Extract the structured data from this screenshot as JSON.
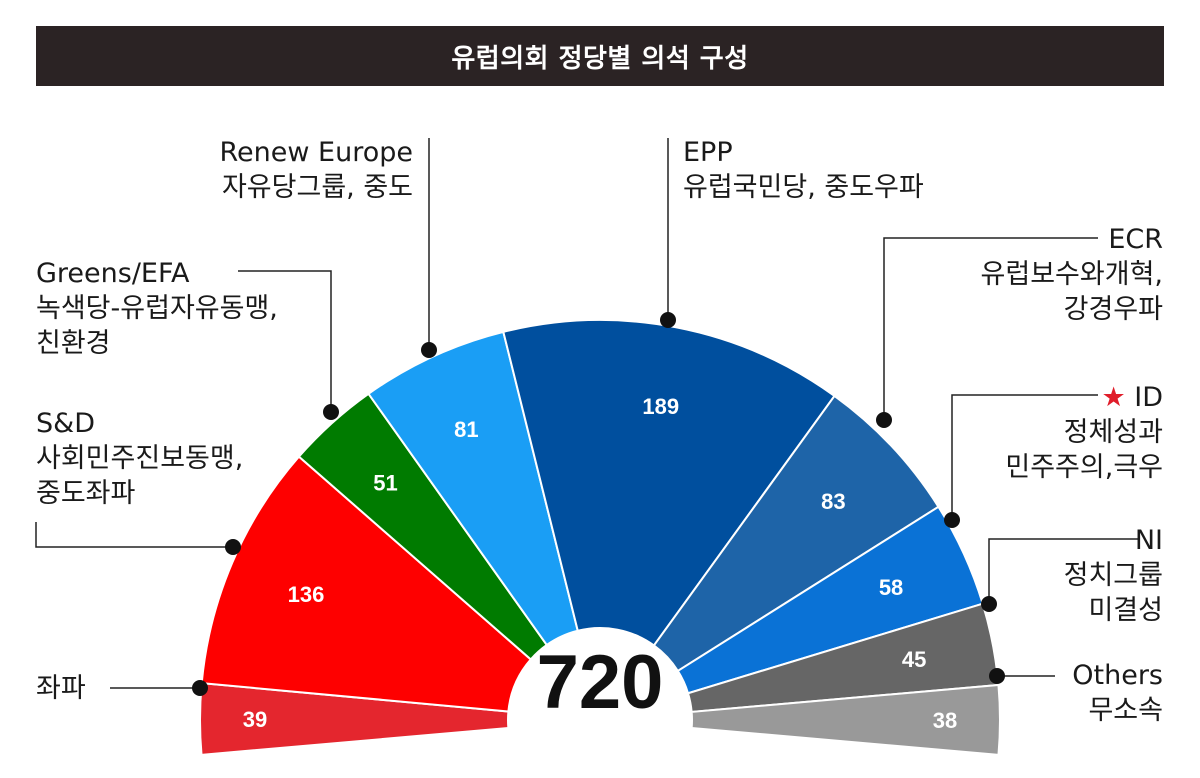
{
  "chart_data": {
    "type": "pie",
    "title": "유럽의회 정당별 의석 구성",
    "total": "720",
    "colors": {
      "title_bg": "#2b2324",
      "star": "#e01d2a"
    },
    "series": [
      {
        "name": "좌파",
        "value": 39,
        "color": "#e4262e",
        "label_lines": [
          "좌파"
        ]
      },
      {
        "name": "S&D",
        "value": 136,
        "color": "#fe0000",
        "label_lines": [
          "S&D",
          "사회민주진보동맹,",
          "중도좌파"
        ]
      },
      {
        "name": "Greens/EFA",
        "value": 51,
        "color": "#007b00",
        "label_lines": [
          "Greens/EFA",
          "녹색당-유럽자유동맹,",
          "친환경"
        ]
      },
      {
        "name": "Renew Europe",
        "value": 81,
        "color": "#1a9ef5",
        "label_lines": [
          "Renew Europe",
          "자유당그룹, 중도"
        ]
      },
      {
        "name": "EPP",
        "value": 189,
        "color": "#004f9e",
        "label_lines": [
          "EPP",
          "유럽국민당, 중도우파"
        ]
      },
      {
        "name": "ECR",
        "value": 83,
        "color": "#1e64a8",
        "label_lines": [
          "ECR",
          "유럽보수와개혁,",
          "강경우파"
        ]
      },
      {
        "name": "ID",
        "value": 58,
        "color": "#0a72d6",
        "star": "★",
        "label_lines": [
          "ID",
          "정체성과",
          "민주주의,극우"
        ]
      },
      {
        "name": "NI",
        "value": 45,
        "color": "#666666",
        "label_lines": [
          "NI",
          "정치그룹",
          "미결성"
        ]
      },
      {
        "name": "Others",
        "value": 38,
        "color": "#999999",
        "label_lines": [
          "Others",
          "무소속"
        ]
      }
    ]
  }
}
